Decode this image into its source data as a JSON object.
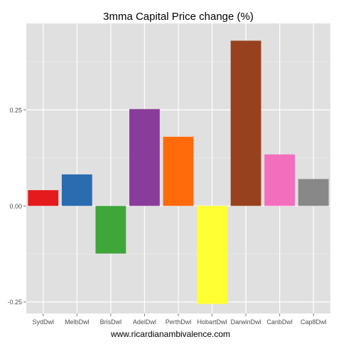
{
  "chart_data": {
    "type": "bar",
    "title": "3mma Capital Price change (%)",
    "xlabel": "",
    "ylabel": "",
    "categories": [
      "SydDwl",
      "MelbDwl",
      "BrisDwl",
      "AdelDwl",
      "PerthDwl",
      "HobartDwl",
      "DarwinDwl",
      "CanbDwl",
      "Cap8Dwl"
    ],
    "values": [
      0.041,
      0.082,
      -0.124,
      0.252,
      0.18,
      -0.255,
      0.43,
      0.134,
      0.07
    ],
    "colors": [
      "#e41a1c",
      "#2b6cb0",
      "#3fa63a",
      "#8a3c9a",
      "#ff6a0a",
      "#ffff33",
      "#98411e",
      "#f46ebe",
      "#888888"
    ],
    "ylim": [
      -0.28,
      0.475
    ],
    "yticks": [
      -0.25,
      0,
      0.25
    ],
    "ytick_labels": [
      "-0.25",
      "0.00",
      "0.25"
    ],
    "grid": true,
    "legend": "none"
  },
  "footer": {
    "source": "www.ricardianambivalence.com"
  },
  "style": {
    "panel_background": "#e0e0e0",
    "grid_major": "#ffffff",
    "grid_minor": "#ebebeb",
    "tick_label_color": "#4d4d4d"
  }
}
